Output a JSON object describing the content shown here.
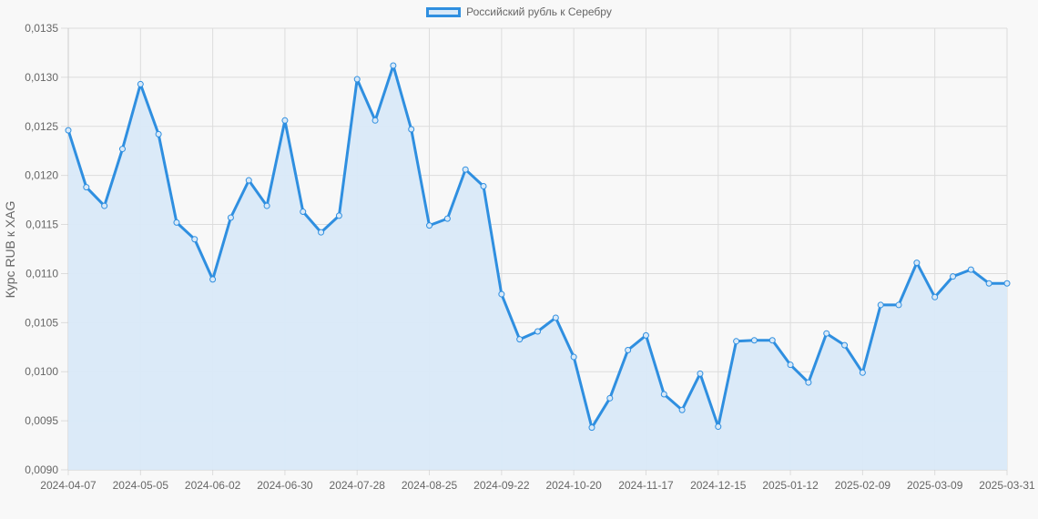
{
  "legend": {
    "label": "Российский рубль к Серебру"
  },
  "colors": {
    "line": "#2f8fe0",
    "fill": "#d9e9f8",
    "grid": "#dcdcdc",
    "background": "#f8f8f8"
  },
  "chart_data": {
    "type": "area",
    "title": "",
    "xlabel": "",
    "ylabel": "Курс RUB к XAG",
    "ylim": [
      0.009,
      0.0135
    ],
    "y_ticks": [
      "0,0090",
      "0,0095",
      "0,0100",
      "0,0105",
      "0,0110",
      "0,0115",
      "0,0120",
      "0,0125",
      "0,0130",
      "0,0135"
    ],
    "x_tick_labels": [
      "2024-04-07",
      "2024-05-05",
      "2024-06-02",
      "2024-06-30",
      "2024-07-28",
      "2024-08-25",
      "2024-09-22",
      "2024-10-20",
      "2024-11-17",
      "2024-12-15",
      "2025-01-12",
      "2025-02-09",
      "2025-03-09",
      "2025-03-31"
    ],
    "grid": true,
    "legend_position": "top",
    "series": [
      {
        "name": "Российский рубль к Серебру",
        "values": [
          0.01246,
          0.01188,
          0.01169,
          0.01227,
          0.01293,
          0.01242,
          0.01152,
          0.01135,
          0.01094,
          0.01157,
          0.01195,
          0.01169,
          0.01256,
          0.01163,
          0.01142,
          0.01159,
          0.01298,
          0.01256,
          0.01312,
          0.01247,
          0.01149,
          0.01156,
          0.01206,
          0.01189,
          0.01079,
          0.01033,
          0.01041,
          0.01055,
          0.01015,
          0.00943,
          0.00973,
          0.01022,
          0.01037,
          0.00977,
          0.00961,
          0.00998,
          0.00944,
          0.01031,
          0.01032,
          0.01032,
          0.01007,
          0.00989,
          0.01039,
          0.01027,
          0.00999,
          0.01068,
          0.01068,
          0.01111,
          0.01076,
          0.01097,
          0.01104,
          0.0109,
          0.0109
        ]
      }
    ]
  }
}
